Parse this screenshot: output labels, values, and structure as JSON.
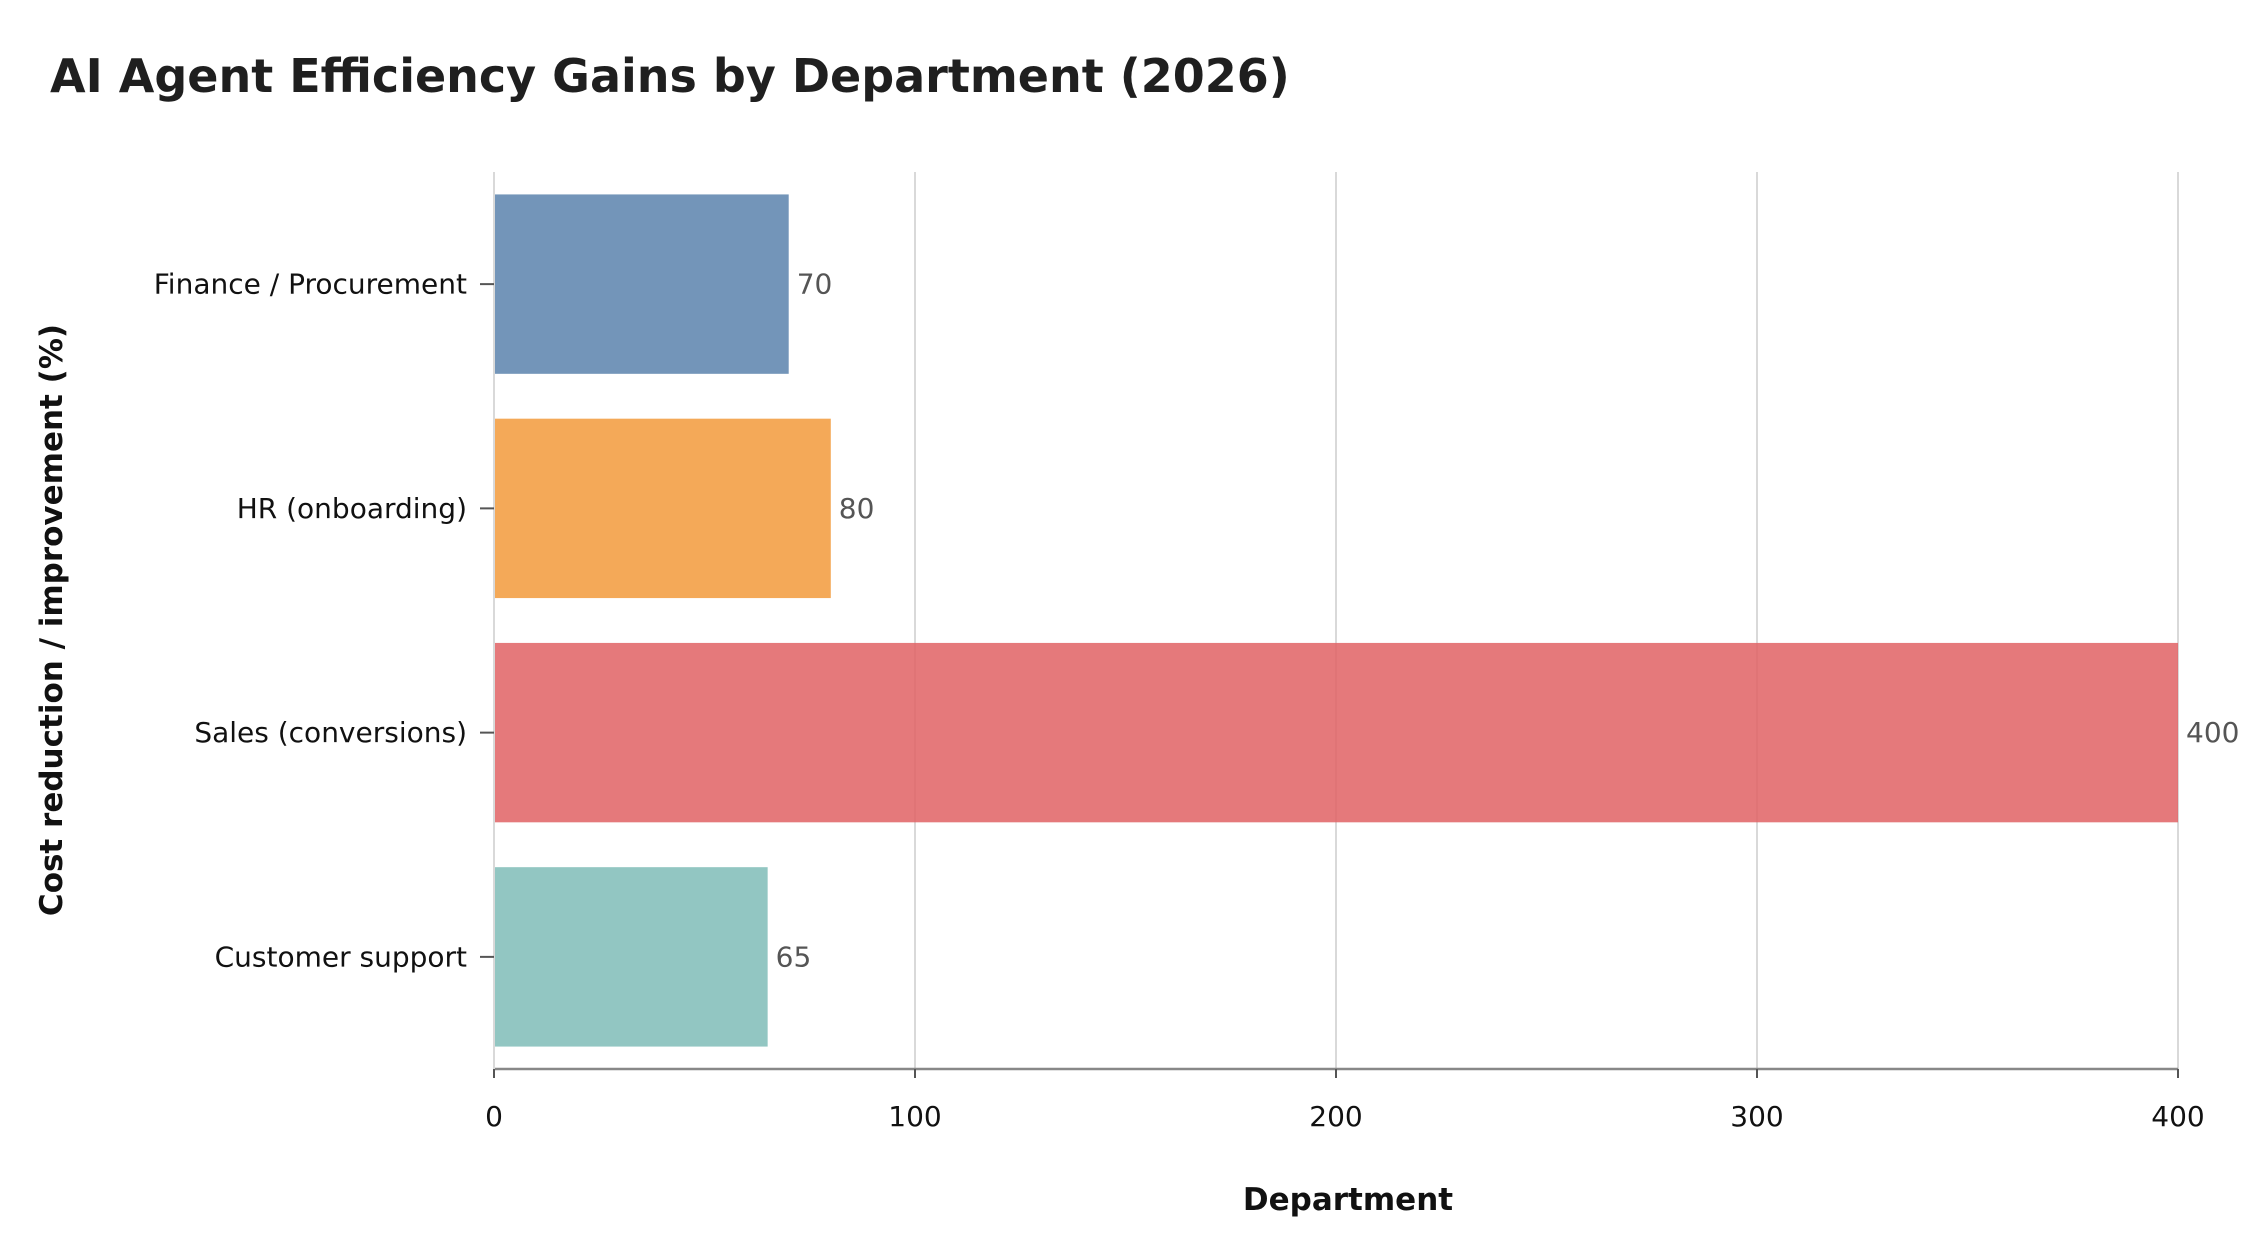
{
  "chart_data": {
    "type": "bar",
    "orientation": "horizontal",
    "title": "AI Agent Efficiency Gains by Department (2026)",
    "xlabel": "Department",
    "ylabel": "Cost reduction / improvement (%)",
    "categories": [
      "Finance / Procurement",
      "HR (onboarding)",
      "Sales (conversions)",
      "Customer support"
    ],
    "values": [
      70,
      80,
      400,
      65
    ],
    "value_labels": [
      "70",
      "80",
      "400",
      "65"
    ],
    "colors": [
      "#5b82ad",
      "#f29a3b",
      "#e06264",
      "#7fbcb7"
    ],
    "xlim": [
      0,
      400
    ],
    "xticks": [
      0,
      100,
      200,
      300,
      400
    ],
    "xtick_labels": [
      "0",
      "100",
      "200",
      "300",
      "400"
    ],
    "grid": "vertical",
    "legend": "none"
  }
}
